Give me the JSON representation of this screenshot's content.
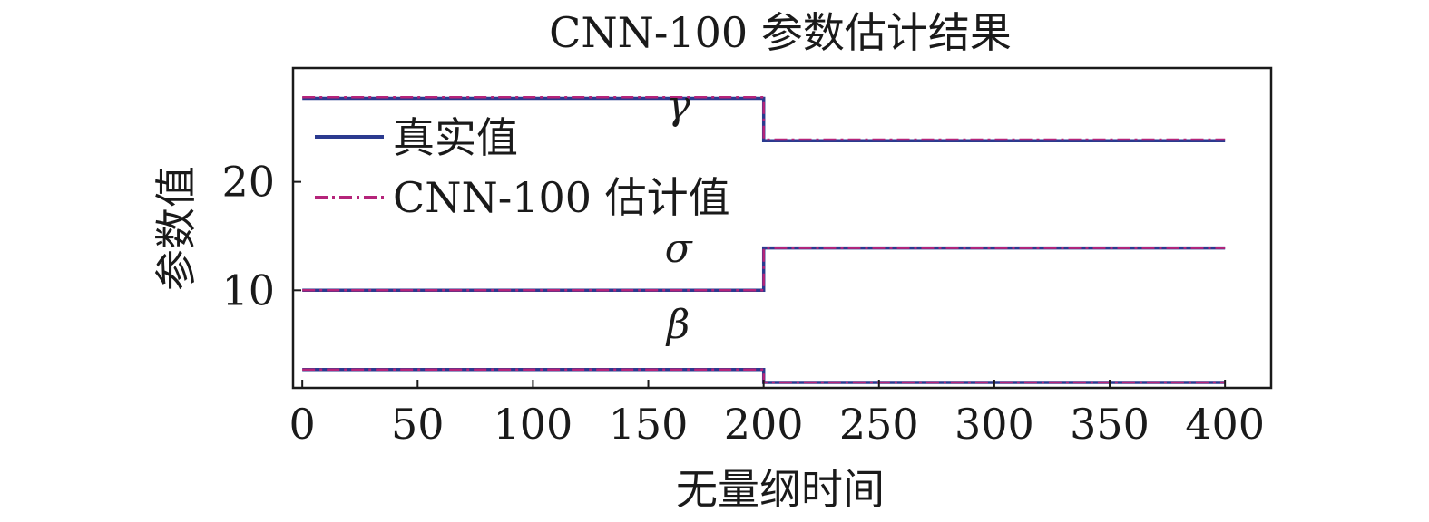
{
  "chart_data": {
    "type": "line",
    "title": "CNN-100 参数估计结果",
    "xlabel": "无量纲时间",
    "ylabel": "参数值",
    "xlim": [
      -4,
      420
    ],
    "ylim": [
      1,
      30.5
    ],
    "xticks": [
      0,
      50,
      100,
      150,
      200,
      250,
      300,
      350,
      400
    ],
    "yticks": [
      10,
      20
    ],
    "legend_position": "upper-left",
    "series": [
      {
        "name": "真实值",
        "color": "#2b3a8f",
        "style": "solid",
        "segments": [
          {
            "parameter": "γ",
            "x": [
              0,
              200,
              200,
              400
            ],
            "y": [
              27.7,
              27.7,
              23.8,
              23.8
            ]
          },
          {
            "parameter": "σ",
            "x": [
              0,
              200,
              200,
              400
            ],
            "y": [
              10.0,
              10.0,
              13.9,
              13.9
            ]
          },
          {
            "parameter": "β",
            "x": [
              0,
              200,
              200,
              400
            ],
            "y": [
              2.7,
              2.7,
              1.5,
              1.5
            ]
          }
        ]
      },
      {
        "name": "CNN-100 估计值",
        "color": "#b5247a",
        "style": "dashdot",
        "segments": [
          {
            "parameter": "γ",
            "x": [
              0,
              200,
              200,
              400
            ],
            "y": [
              27.8,
              27.8,
              23.9,
              23.9
            ]
          },
          {
            "parameter": "σ",
            "x": [
              0,
              200,
              200,
              400
            ],
            "y": [
              10.0,
              10.0,
              13.9,
              13.9
            ]
          },
          {
            "parameter": "β",
            "x": [
              0,
              200,
              200,
              400
            ],
            "y": [
              2.7,
              2.7,
              1.5,
              1.5
            ]
          }
        ]
      }
    ],
    "annotations": [
      {
        "text": "γ",
        "x": 163,
        "y": 25.8
      },
      {
        "text": "σ",
        "x": 163,
        "y": 12.6
      },
      {
        "text": "β",
        "x": 163,
        "y": 5.6
      }
    ]
  }
}
